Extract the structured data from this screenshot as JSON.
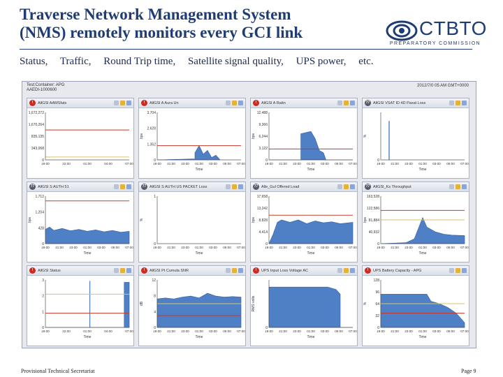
{
  "slide": {
    "title_line1": "Traverse Network Management System",
    "title_line2": "(NMS) remotely monitors every GCI link",
    "subtitle_items": [
      "Status,",
      "Traffic,",
      "Round Trip time,",
      "Satellite signal quality,",
      "UPS power,",
      "etc."
    ],
    "logo_name": "CTBTO",
    "logo_sub": "PREPARATORY COMMISSION",
    "footer_left": "Provisional Technical Secretariat",
    "footer_right": "Page 9"
  },
  "dashboard": {
    "header_line1": "Test:Container: APG",
    "header_line2": "AAEDI-1000600",
    "header_right": "2012/7/0 05 AM GMT+0000"
  },
  "colors": {
    "title": "#1f3d73",
    "area_fill": "#4f7fc4",
    "threshold_red": "#c83a2a",
    "threshold_yellow": "#d8c36a"
  },
  "panels": [
    {
      "title": "AllGSI AAMSfats",
      "badge": "!",
      "badge_color": "red",
      "yticks": [
        "1,672,272",
        "1,670,264",
        "835,135",
        "343,068",
        "0"
      ],
      "xticks": [
        "19:00",
        "22:00",
        "01:00",
        "04:00",
        "07:00"
      ],
      "xlabel": "",
      "ylabel": ""
    },
    {
      "title": "AllGSI A Aura Un",
      "badge": "!",
      "badge_color": "red",
      "yticks": [
        "3,704",
        "2,628",
        "1,352",
        "0"
      ],
      "xticks": [
        "19:00",
        "21:00",
        "23:00",
        "01:00",
        "03:00",
        "05:00",
        "07:00"
      ],
      "xlabel": "Time",
      "ylabel": "bps"
    },
    {
      "title": "AllGSI A Rattn",
      "badge": "!",
      "badge_color": "red",
      "yticks": [
        "12,488",
        "9,366",
        "6,244",
        "3,122",
        "0"
      ],
      "xticks": [
        "19:00",
        "21:00",
        "23:00",
        "01:00",
        "03:00",
        "05:00",
        "07:00"
      ],
      "xlabel": "Time",
      "ylabel": "bps"
    },
    {
      "title": "AllGSI VSAT ID 4D Paxat Loss",
      "badge": "77",
      "badge_color": "gray",
      "yticks": [
        "0"
      ],
      "xticks": [
        "19:00",
        "21:00",
        "23:00",
        "01:00",
        "03:00",
        "05:00",
        "07:00"
      ],
      "xlabel": "Time",
      "ylabel": "%"
    },
    {
      "title": "AllGSI S AUTH 51",
      "badge": "77",
      "badge_color": "gray",
      "yticks": [
        "1,712",
        "1,204",
        "428",
        "0"
      ],
      "xticks": [
        "19:00",
        "21:00",
        "23:00",
        "01:00",
        "03:00",
        "05:00",
        "07:00"
      ],
      "xlabel": "Time",
      "ylabel": "bps"
    },
    {
      "title": "AllGSI S AUTH US PACKET Loss",
      "badge": "77",
      "badge_color": "gray",
      "yticks": [
        "1",
        "0"
      ],
      "xticks": [
        "19:00",
        "21:00",
        "23:00",
        "01:00",
        "03:00",
        "05:00",
        "07:00"
      ],
      "xlabel": "Time",
      "ylabel": "%"
    },
    {
      "title": "Alle_Gul Offered Load",
      "badge": "77",
      "badge_color": "gray",
      "yticks": [
        "17,658",
        "13,242",
        "8,828",
        "4,414",
        "0"
      ],
      "xticks": [
        "19:00",
        "21:00",
        "23:00",
        "01:00",
        "03:00",
        "05:00",
        "07:00"
      ],
      "xlabel": "Time",
      "ylabel": "bps"
    },
    {
      "title": "AllGSI_Ks Throughput",
      "badge": "77",
      "badge_color": "gray",
      "yticks": [
        "163,528",
        "122,586",
        "81,884",
        "40,932",
        "0"
      ],
      "xticks": [
        "19:00",
        "21:00",
        "23:00",
        "01:00",
        "03:00",
        "05:00",
        "07:00"
      ],
      "xlabel": "Time",
      "ylabel": "bps"
    },
    {
      "title": "AllGSI Status",
      "badge": "!",
      "badge_color": "red",
      "yticks": [
        "3",
        "2",
        "1",
        "0"
      ],
      "xticks": [
        "19:00",
        "22:00",
        "01:00",
        "04:00",
        "07:00"
      ],
      "xlabel": "Time",
      "ylabel": ""
    },
    {
      "title": "AllGSI Pt Cumula SNR",
      "badge": "!",
      "badge_color": "red",
      "yticks": [
        "12",
        "8",
        "4",
        "0"
      ],
      "xticks": [
        "19:00",
        "21:00",
        "23:00",
        "01:00",
        "03:00",
        "05:00",
        "07:00"
      ],
      "xlabel": "Time",
      "ylabel": "dB"
    },
    {
      "title": "UPS Input Loss Voltage AC",
      "badge": "!",
      "badge_color": "red",
      "yticks": [
        "0"
      ],
      "xticks": [
        "19:00",
        "21:00",
        "23:00",
        "01:00",
        "03:00",
        "05:00",
        "07:00"
      ],
      "xlabel": "Time",
      "ylabel": "RMS volts"
    },
    {
      "title": "UPS Battery Capacity - APG",
      "badge": "!",
      "badge_color": "red",
      "yticks": [
        "128",
        "96",
        "64",
        "32",
        "0"
      ],
      "xticks": [
        "19:00",
        "21:00",
        "23:00",
        "01:00",
        "03:00",
        "05:00",
        "07:00"
      ],
      "xlabel": "Time",
      "ylabel": "%"
    }
  ]
}
